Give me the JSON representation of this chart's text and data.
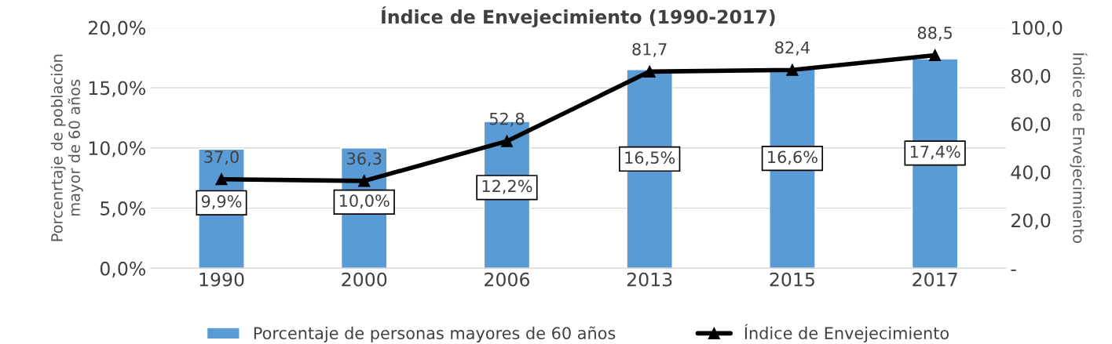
{
  "chart_data": {
    "type": "bar",
    "title": "Índice de Envejecimiento (1990-2017)",
    "categories": [
      "1990",
      "2000",
      "2006",
      "2013",
      "2015",
      "2017"
    ],
    "ylabel": "Porcenrtaje de población\nmayor de 60 años",
    "y2label": "Índice de Envejecimiento",
    "series": [
      {
        "name": "Porcentaje de personas mayores de 60 años",
        "color": "#5b9bd5",
        "values": [
          9.9,
          10.0,
          12.2,
          16.5,
          16.6,
          17.4
        ],
        "value_labels": [
          "9,9%",
          "10,0%",
          "12,2%",
          "16,5%",
          "16,6%",
          "17,4%"
        ]
      },
      {
        "name": "Índice de Envejecimiento",
        "type": "line",
        "axis": "y2",
        "color": "#000000",
        "marker": "triangle",
        "line_style": "solid",
        "values": [
          37.0,
          36.3,
          52.8,
          81.7,
          82.4,
          88.5
        ],
        "value_labels": [
          "37,0",
          "36,3",
          "52,8",
          "81,7",
          "82,4",
          "88,5"
        ]
      }
    ],
    "ylim": [
      0,
      20
    ],
    "yticks": [
      {
        "value": 0,
        "label": "0,0%"
      },
      {
        "value": 5,
        "label": "5,0%"
      },
      {
        "value": 10,
        "label": "10,0%"
      },
      {
        "value": 15,
        "label": "15,0%"
      },
      {
        "value": 20,
        "label": "20,0%"
      }
    ],
    "y2lim": [
      0,
      100
    ],
    "y2ticks": [
      {
        "value": 0,
        "label": "-"
      },
      {
        "value": 20,
        "label": "20,0"
      },
      {
        "value": 40,
        "label": "40,0"
      },
      {
        "value": 60,
        "label": "60,0"
      },
      {
        "value": 80,
        "label": "80,0"
      },
      {
        "value": 100,
        "label": "100,0"
      }
    ],
    "grid": "y",
    "legend": "bottom"
  }
}
